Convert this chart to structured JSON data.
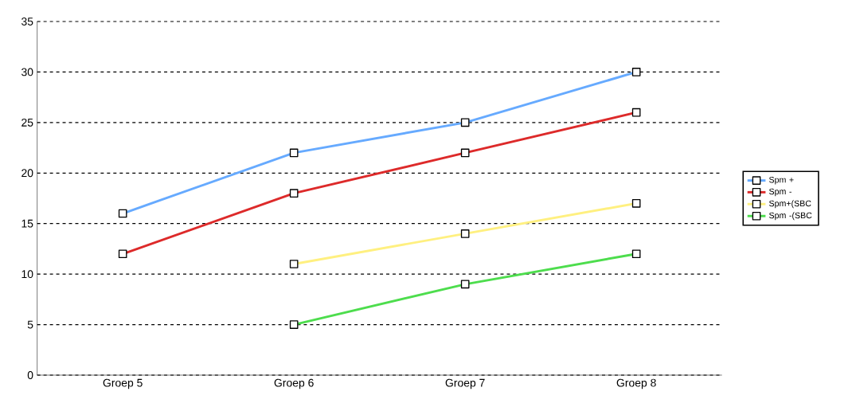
{
  "chart_data": {
    "type": "line",
    "categories": [
      "Groep 5",
      "Groep 6",
      "Groep 7",
      "Groep 8"
    ],
    "series": [
      {
        "name": "Spm +",
        "color": "#66aaff",
        "values": [
          16,
          22,
          25,
          30
        ]
      },
      {
        "name": "Spm -",
        "color": "#dd2a2a",
        "values": [
          12,
          18,
          22,
          26
        ]
      },
      {
        "name": "Spm+(SBC",
        "color": "#fff080",
        "values": [
          null,
          11,
          14,
          17
        ]
      },
      {
        "name": "Spm -(SBC",
        "color": "#4ddd4d",
        "values": [
          null,
          5,
          9,
          12
        ]
      }
    ],
    "ylim": [
      0,
      35
    ],
    "yticks": [
      0,
      5,
      10,
      15,
      20,
      25,
      30,
      35
    ],
    "grid": "y",
    "legend": "right",
    "marker": "square",
    "line_style": "solid"
  }
}
